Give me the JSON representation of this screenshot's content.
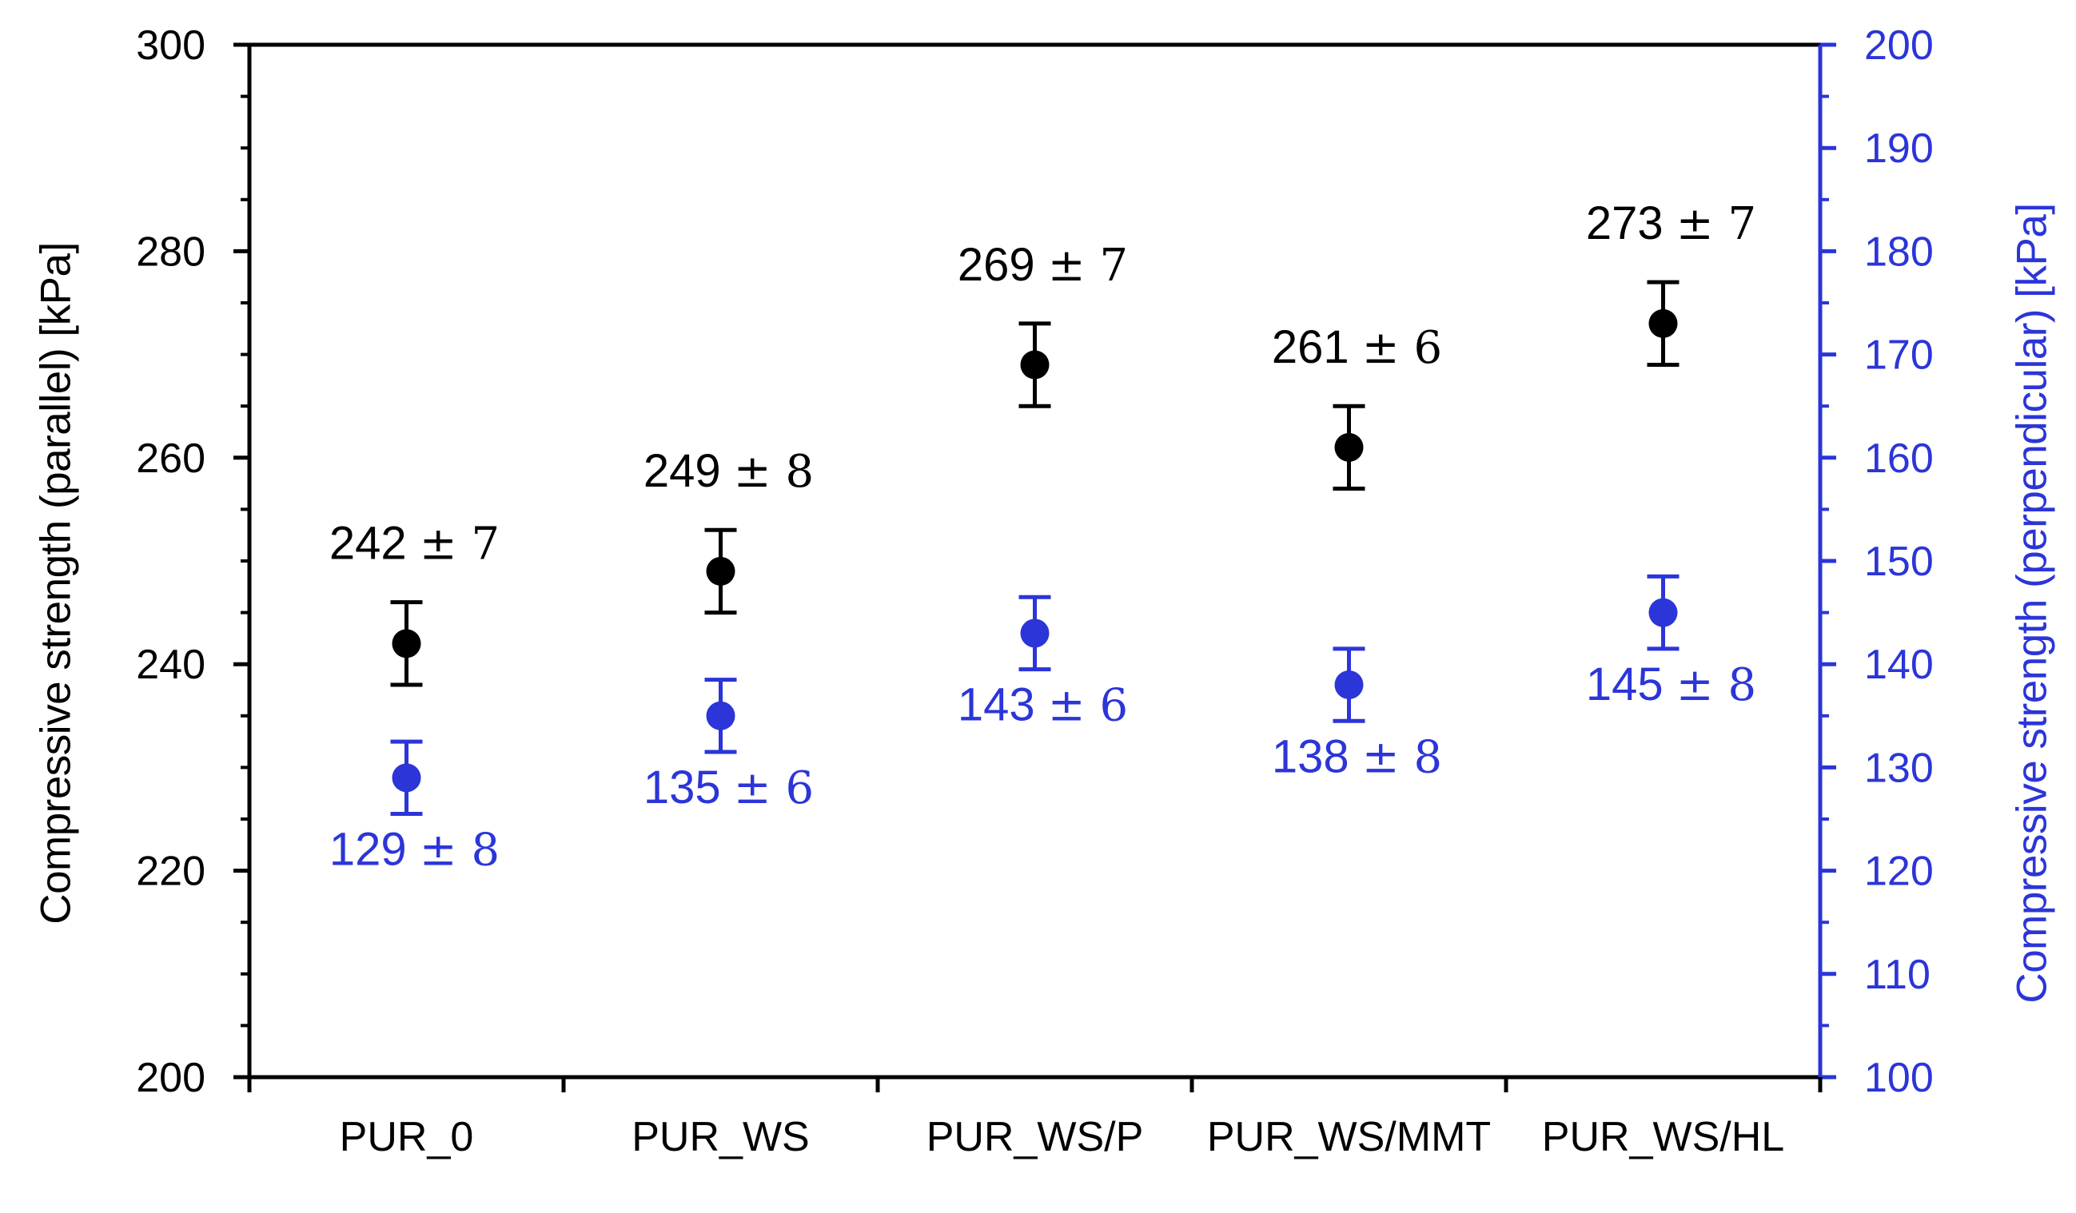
{
  "chart_data": {
    "type": "scatter",
    "background": "#ffffff",
    "grid": false,
    "legend": null,
    "plus_minus": "±",
    "categories": [
      "PUR_0",
      "PUR_WS",
      "PUR_WS/P",
      "PUR_WS/MMT",
      "PUR_WS/HL"
    ],
    "series": [
      {
        "name": "Compressive strength (parallel)",
        "axis": "left",
        "color": "#000000",
        "marker": "circle",
        "label_position": "above",
        "values": [
          242,
          249,
          269,
          261,
          273
        ],
        "errors": [
          7,
          8,
          7,
          6,
          7
        ],
        "drawn_bar_half": 4
      },
      {
        "name": "Compressive strength (perpendicular)",
        "axis": "right",
        "color": "#2b35d8",
        "marker": "circle",
        "label_position": "below",
        "values": [
          129,
          135,
          143,
          138,
          145
        ],
        "errors": [
          8,
          6,
          6,
          8,
          8
        ],
        "drawn_bar_half": 3.5
      }
    ],
    "left_axis": {
      "title": "Compressive strength (parallel) [kPa]",
      "min": 200,
      "max": 300,
      "major_step": 20,
      "minor_step": 5,
      "tick_labels": [
        300,
        280,
        260,
        240,
        220,
        200
      ],
      "color": "#000000"
    },
    "right_axis": {
      "title": "Compressive strength (perpendicular) [kPa]",
      "min": 100,
      "max": 200,
      "major_step": 10,
      "minor_step": 5,
      "tick_labels": [
        200,
        190,
        180,
        170,
        160,
        150,
        140,
        130,
        120,
        110,
        100
      ],
      "color": "#2b35d8"
    },
    "x_axis": {
      "color": "#000000"
    }
  }
}
